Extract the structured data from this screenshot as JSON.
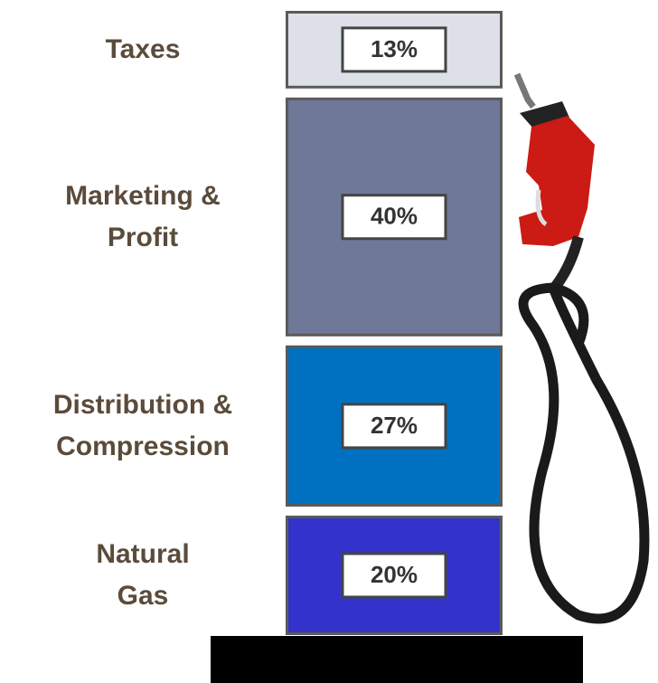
{
  "chart_data": {
    "type": "stacked-bar",
    "series": [
      {
        "name": "Natural Gas",
        "color": "#3333cc",
        "values": [
          20
        ],
        "value_labels": [
          "20%"
        ]
      },
      {
        "name": "Distribution & Compression",
        "color": "#0070c0",
        "values": [
          27
        ],
        "value_labels": [
          "27%"
        ]
      },
      {
        "name": "Marketing & Profit",
        "color": "#6f7898",
        "values": [
          40
        ],
        "value_labels": [
          "40%"
        ]
      },
      {
        "name": "Taxes",
        "color": "#dde0e8",
        "values": [
          13
        ],
        "value_labels": [
          "13%"
        ]
      }
    ]
  }
}
